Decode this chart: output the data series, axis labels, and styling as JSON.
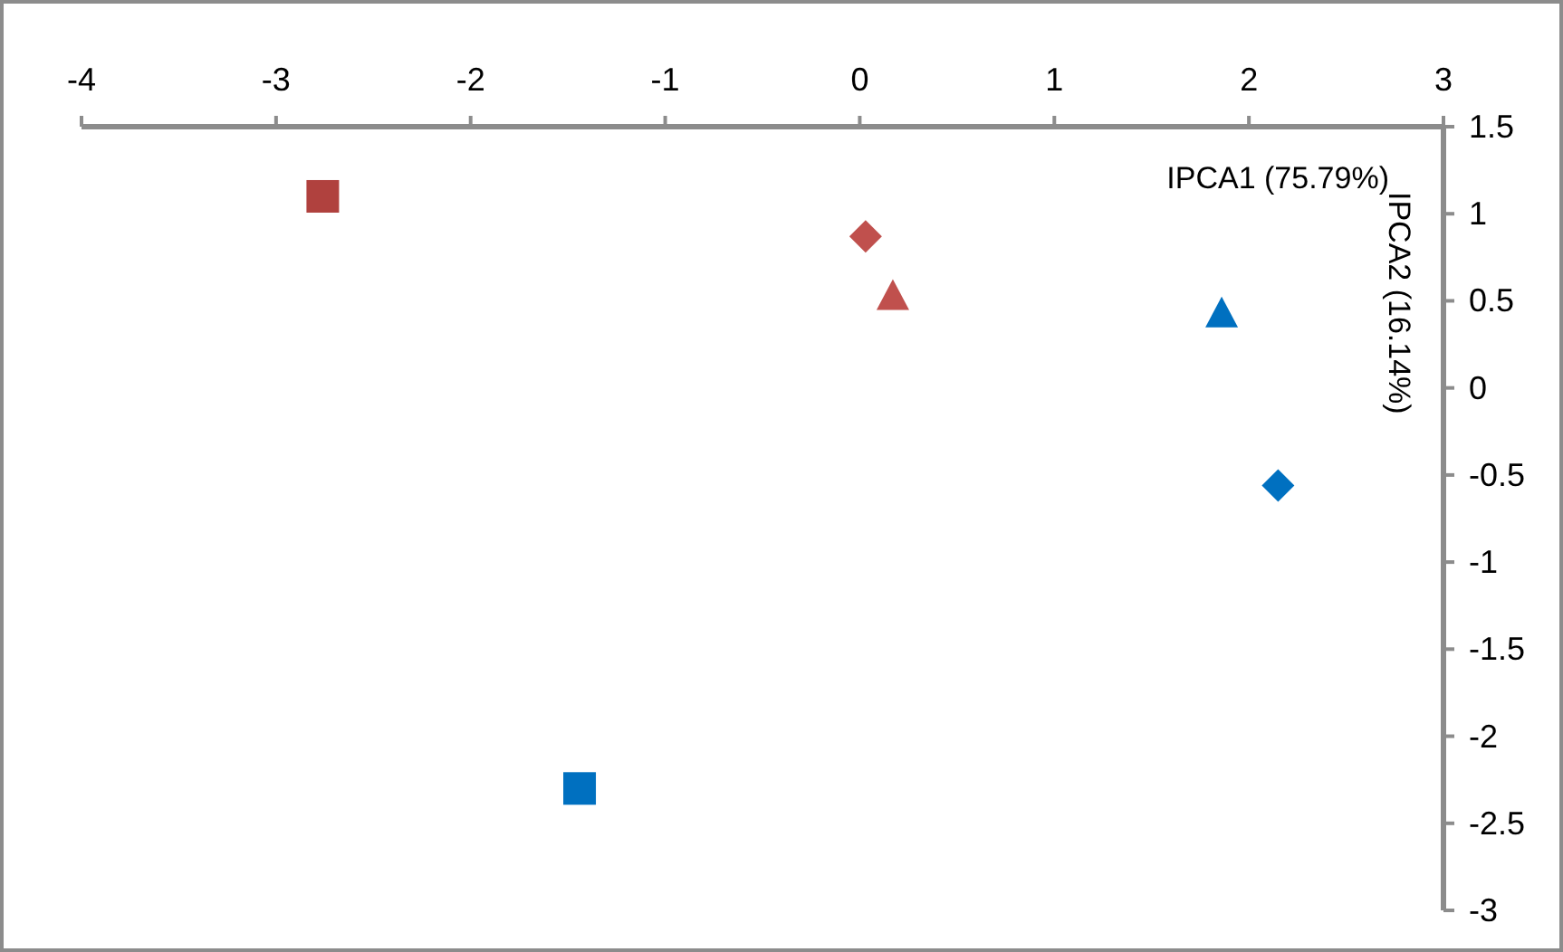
{
  "chart_data": {
    "type": "scatter",
    "xlabel": "IPCA1 (75.79%)",
    "ylabel": "IPCA2 (16.14%)",
    "xlim": [
      -4,
      3
    ],
    "xticks": [
      -4,
      -3,
      -2,
      -1,
      0,
      1,
      2,
      3
    ],
    "ylim": [
      -3,
      1.5
    ],
    "yticks": [
      -3,
      -2.5,
      -2,
      -1.5,
      -1,
      -0.5,
      0,
      0.5,
      1,
      1.5
    ],
    "grid": false,
    "series": [
      {
        "color": "#b0413e",
        "marker": "square",
        "x": [
          -2.76
        ],
        "values": [
          1.1
        ]
      },
      {
        "color": "#c0504d",
        "marker": "diamond",
        "x": [
          0.03
        ],
        "values": [
          0.87
        ]
      },
      {
        "color": "#c0504d",
        "marker": "triangle",
        "x": [
          0.17
        ],
        "values": [
          0.52
        ]
      },
      {
        "color": "#0070c0",
        "marker": "triangle",
        "x": [
          1.86
        ],
        "values": [
          0.42
        ]
      },
      {
        "color": "#0070c0",
        "marker": "diamond",
        "x": [
          2.15
        ],
        "values": [
          -0.56
        ]
      },
      {
        "color": "#0070c0",
        "marker": "square",
        "x": [
          -1.44
        ],
        "values": [
          -2.3
        ]
      }
    ]
  }
}
